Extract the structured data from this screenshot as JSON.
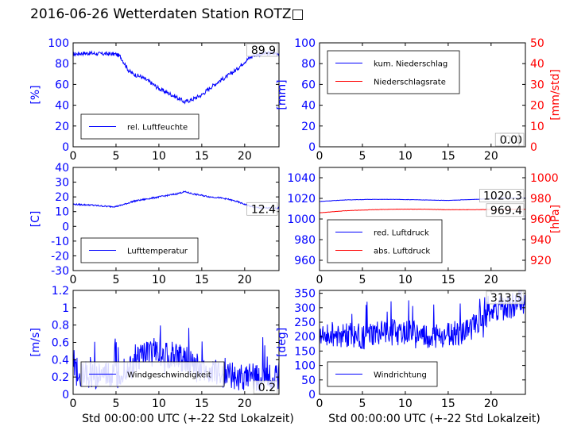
{
  "page": {
    "title": "2016-06-26 Wetterdaten Station ROTZ□"
  },
  "colors": {
    "primary": "#0000ff",
    "secondary": "#ff0000",
    "axes": "#000000"
  },
  "chart_data": [
    {
      "id": "humidity",
      "type": "line",
      "xlim": [
        0,
        24
      ],
      "xticks": [
        0,
        5,
        10,
        15,
        20
      ],
      "ylim": [
        0,
        100
      ],
      "yticks": [
        0,
        20,
        40,
        60,
        80,
        100
      ],
      "ylabel": "[%]",
      "ylabel_color": "#0000ff",
      "legend": {
        "placement": "lower-left",
        "entries": [
          {
            "label": "rel. Luftfeuchte",
            "color": "#0000ff"
          }
        ]
      },
      "annotations": [
        {
          "text": "89.9",
          "anchor": "top-right"
        }
      ],
      "series": [
        {
          "name": "rel. Luftfeuchte",
          "color": "#0000ff",
          "noise": 2,
          "points": [
            [
              0,
              89
            ],
            [
              1,
              90
            ],
            [
              2,
              90
            ],
            [
              3,
              89.5
            ],
            [
              4,
              89.5
            ],
            [
              5,
              89
            ],
            [
              5.5,
              87
            ],
            [
              6,
              80
            ],
            [
              6.5,
              73
            ],
            [
              7,
              70
            ],
            [
              8,
              67
            ],
            [
              9,
              62
            ],
            [
              10,
              56
            ],
            [
              11,
              52
            ],
            [
              12,
              48
            ],
            [
              13,
              43
            ],
            [
              14,
              46
            ],
            [
              15,
              50
            ],
            [
              16,
              57
            ],
            [
              17,
              63
            ],
            [
              18,
              68
            ],
            [
              19,
              74
            ],
            [
              20,
              82
            ],
            [
              21,
              88
            ],
            [
              22,
              89.5
            ],
            [
              24,
              90
            ]
          ]
        }
      ]
    },
    {
      "id": "precip",
      "type": "line",
      "xlim": [
        0,
        24
      ],
      "xticks": [
        0,
        5,
        10,
        15,
        20
      ],
      "ylim": [
        0,
        100
      ],
      "yticks": [
        0,
        20,
        40,
        60,
        80,
        100
      ],
      "ylabel": "[mm]",
      "ylabel_color": "#0000ff",
      "y2lim": [
        0,
        50
      ],
      "y2ticks": [
        0,
        10,
        20,
        30,
        40,
        50
      ],
      "y2label": "[mm/std]",
      "y2label_color": "#ff0000",
      "legend": {
        "placement": "upper-left",
        "entries": [
          {
            "label": "kum. Niederschlag",
            "color": "#0000ff"
          },
          {
            "label": "Niederschlagsrate",
            "color": "#ff0000"
          }
        ]
      },
      "annotations": [
        {
          "text": "0.0",
          "anchor": "bottom-right",
          "color": "#000000"
        },
        {
          "text": "0.0",
          "anchor": "bottom-right",
          "color": "#000000"
        }
      ],
      "series": [
        {
          "name": "kum. Niederschlag",
          "color": "#0000ff",
          "noise": 0,
          "points": [
            [
              0,
              0
            ],
            [
              24,
              0
            ]
          ]
        },
        {
          "name": "Niederschlagsrate",
          "color": "#ff0000",
          "axis": "y2",
          "noise": 0,
          "points": [
            [
              0,
              0
            ],
            [
              24,
              0
            ]
          ]
        }
      ]
    },
    {
      "id": "temperature",
      "type": "line",
      "xlim": [
        0,
        24
      ],
      "xticks": [
        0,
        5,
        10,
        15,
        20
      ],
      "ylim": [
        -30,
        40
      ],
      "yticks": [
        -30,
        -20,
        -10,
        0,
        10,
        20,
        30,
        40
      ],
      "ylabel": "[C]",
      "ylabel_color": "#0000ff",
      "legend": {
        "placement": "lower-left",
        "entries": [
          {
            "label": "Lufttemperatur",
            "color": "#0000ff"
          }
        ]
      },
      "annotations": [
        {
          "text": "12.4",
          "anchor": "right"
        }
      ],
      "series": [
        {
          "name": "Lufttemperatur",
          "color": "#0000ff",
          "noise": 0.5,
          "points": [
            [
              0,
              15
            ],
            [
              2,
              14.5
            ],
            [
              4,
              13.5
            ],
            [
              5,
              13.5
            ],
            [
              6,
              15
            ],
            [
              7,
              17
            ],
            [
              8,
              18
            ],
            [
              9,
              19
            ],
            [
              10,
              20
            ],
            [
              11,
              21
            ],
            [
              12,
              22
            ],
            [
              13,
              23.5
            ],
            [
              14,
              22
            ],
            [
              15,
              21
            ],
            [
              16,
              20
            ],
            [
              17,
              19.5
            ],
            [
              18,
              18.5
            ],
            [
              19,
              17
            ],
            [
              20,
              15
            ],
            [
              21,
              13
            ],
            [
              22,
              12.5
            ],
            [
              24,
              12.4
            ]
          ]
        }
      ]
    },
    {
      "id": "pressure",
      "type": "line",
      "xlim": [
        0,
        24
      ],
      "xticks": [
        0,
        5,
        10,
        15,
        20
      ],
      "ylim": [
        950,
        1050
      ],
      "yticks": [
        960,
        980,
        1000,
        1020,
        1040
      ],
      "ylabel": "",
      "ylabel_color": "#0000ff",
      "y2lim": [
        910,
        1010
      ],
      "y2ticks": [
        920,
        940,
        960,
        980,
        1000
      ],
      "y2label": "[hPa]",
      "y2label_color": "#ff0000",
      "legend": {
        "placement": "lower-left",
        "entries": [
          {
            "label": "red. Luftdruck",
            "color": "#0000ff"
          },
          {
            "label": "abs. Luftdruck",
            "color": "#ff0000"
          }
        ]
      },
      "annotations": [
        {
          "text": "1020.3",
          "anchor": "right-upper"
        },
        {
          "text": "969.4",
          "anchor": "right-lower"
        }
      ],
      "series": [
        {
          "name": "red. Luftdruck",
          "color": "#0000ff",
          "noise": 0.15,
          "points": [
            [
              0,
              1017
            ],
            [
              3,
              1018.5
            ],
            [
              6,
              1019
            ],
            [
              9,
              1019
            ],
            [
              12,
              1018.5
            ],
            [
              15,
              1018
            ],
            [
              18,
              1019
            ],
            [
              21,
              1020
            ],
            [
              24,
              1020.3
            ]
          ]
        },
        {
          "name": "abs. Luftdruck",
          "color": "#ff0000",
          "axis": "y2",
          "noise": 0.15,
          "points": [
            [
              0,
              966
            ],
            [
              3,
              968
            ],
            [
              6,
              969
            ],
            [
              9,
              969.5
            ],
            [
              12,
              969.5
            ],
            [
              15,
              969
            ],
            [
              18,
              969
            ],
            [
              21,
              969.4
            ],
            [
              24,
              969.4
            ]
          ]
        }
      ]
    },
    {
      "id": "wind-speed",
      "type": "line",
      "xlim": [
        0,
        24
      ],
      "xticks": [
        0,
        5,
        10,
        15,
        20
      ],
      "ylim": [
        0,
        1.2
      ],
      "yticks": [
        0.0,
        0.2,
        0.4,
        0.6,
        0.8,
        1.0,
        1.2
      ],
      "xlabel": "Std 00:00:00 UTC (+-22 Std Lokalzeit)",
      "ylabel": "[m/s]",
      "ylabel_color": "#0000ff",
      "legend": {
        "placement": "lower-center",
        "entries": [
          {
            "label": "Windgeschwindigkeit",
            "color": "#0000ff"
          }
        ]
      },
      "annotations": [
        {
          "text": "0.2",
          "anchor": "bottom-right"
        }
      ],
      "series": [
        {
          "name": "Windgeschwindigkeit",
          "color": "#0000ff",
          "noise": 0.16,
          "spiky": true,
          "points": [
            [
              0,
              0.25
            ],
            [
              3,
              0.22
            ],
            [
              5,
              0.2
            ],
            [
              6,
              0.3
            ],
            [
              7,
              0.35
            ],
            [
              8,
              0.45
            ],
            [
              9,
              0.45
            ],
            [
              10,
              0.5
            ],
            [
              11,
              0.45
            ],
            [
              12,
              0.45
            ],
            [
              13,
              0.4
            ],
            [
              14,
              0.35
            ],
            [
              15,
              0.3
            ],
            [
              16,
              0.28
            ],
            [
              17,
              0.25
            ],
            [
              18,
              0.22
            ],
            [
              20,
              0.2
            ],
            [
              22,
              0.2
            ],
            [
              24,
              0.2
            ]
          ]
        }
      ]
    },
    {
      "id": "wind-dir",
      "type": "line",
      "xlim": [
        0,
        24
      ],
      "xticks": [
        0,
        5,
        10,
        15,
        20
      ],
      "ylim": [
        0,
        360
      ],
      "yticks": [
        0,
        50,
        100,
        150,
        200,
        250,
        300,
        350
      ],
      "xlabel": "Std 00:00:00 UTC (+-22 Std Lokalzeit)",
      "ylabel": "[deg]",
      "ylabel_color": "#0000ff",
      "legend": {
        "placement": "lower-left",
        "entries": [
          {
            "label": "Windrichtung",
            "color": "#0000ff"
          }
        ]
      },
      "annotations": [
        {
          "text": "313.5",
          "anchor": "top-right"
        }
      ],
      "series": [
        {
          "name": "Windrichtung",
          "color": "#0000ff",
          "noise": 45,
          "spiky": true,
          "points": [
            [
              0,
              210
            ],
            [
              3,
              205
            ],
            [
              5,
              200
            ],
            [
              7,
              210
            ],
            [
              9,
              215
            ],
            [
              11,
              210
            ],
            [
              13,
              195
            ],
            [
              15,
              205
            ],
            [
              17,
              215
            ],
            [
              18,
              240
            ],
            [
              19,
              265
            ],
            [
              20,
              285
            ],
            [
              21,
              300
            ],
            [
              22,
              305
            ],
            [
              24,
              313.5
            ]
          ]
        }
      ]
    }
  ]
}
